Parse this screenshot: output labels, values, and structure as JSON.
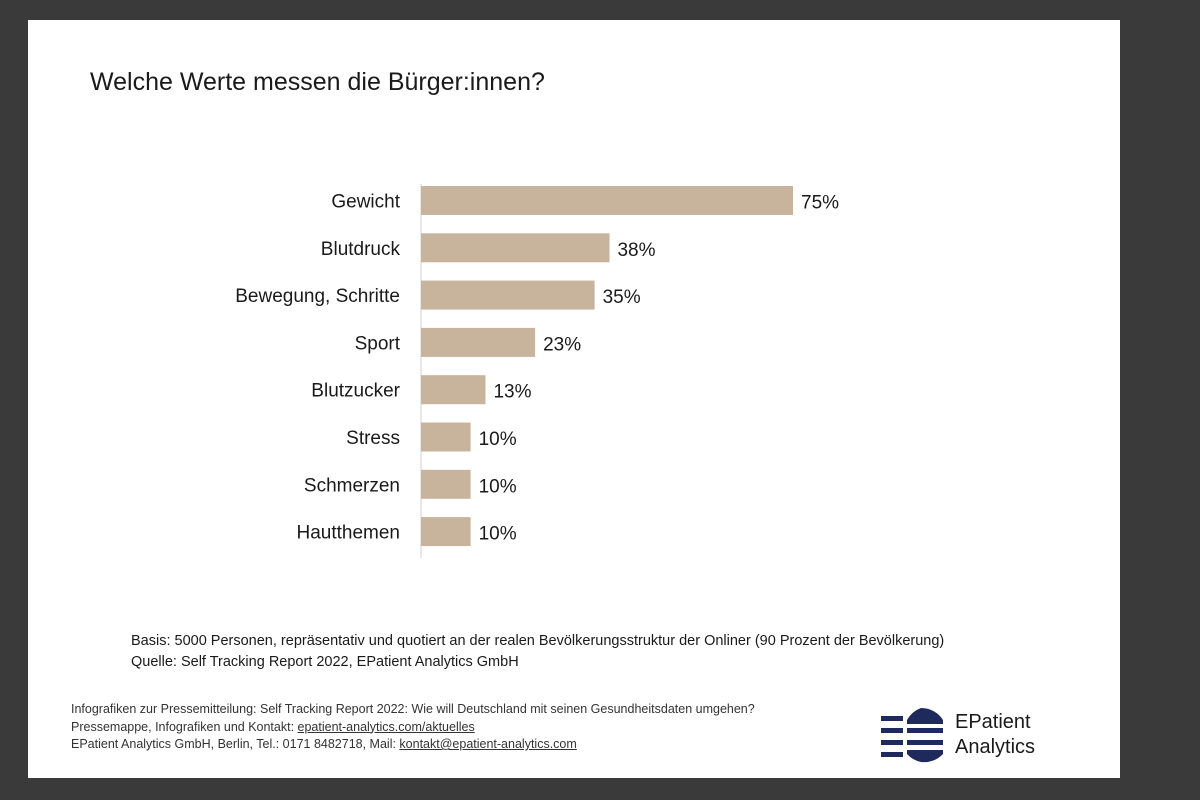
{
  "slide": {
    "title": "Welche Werte messen die Bürger:innen?",
    "notes": {
      "basis": "Basis: 5000 Personen, repräsentativ und quotiert an der realen Bevölkerungsstruktur der Onliner (90 Prozent der Bevölkerung)",
      "source": "Quelle: Self Tracking Report 2022, EPatient Analytics GmbH"
    },
    "footer": {
      "line1": "Infografiken zur Pressemitteilung: Self Tracking Report 2022: Wie will Deutschland mit seinen Gesundheitsdaten umgehen?",
      "line2_prefix": "Pressemappe, Infografiken und Kontakt: ",
      "line2_link": "epatient-analytics.com/aktuelles",
      "line3_prefix": "EPatient Analytics GmbH, Berlin, Tel.: 0171 8482718, Mail: ",
      "line3_link": "kontakt@epatient-analytics.com"
    },
    "logo": {
      "line1": "EPatient",
      "line2": "Analytics",
      "color": "#1f2a5c"
    }
  },
  "chart_data": {
    "type": "bar",
    "orientation": "horizontal",
    "title": "Welche Werte messen die Bürger:innen?",
    "categories": [
      "Gewicht",
      "Blutdruck",
      "Bewegung, Schritte",
      "Sport",
      "Blutzucker",
      "Stress",
      "Schmerzen",
      "Hautthemen"
    ],
    "values": [
      75,
      38,
      35,
      23,
      13,
      10,
      10,
      10
    ],
    "value_labels": [
      "75%",
      "38%",
      "35%",
      "23%",
      "13%",
      "10%",
      "10%",
      "10%"
    ],
    "unit": "%",
    "xlim": [
      0,
      100
    ],
    "bar_color": "#c8b49c",
    "grid": false,
    "legend": "none"
  }
}
